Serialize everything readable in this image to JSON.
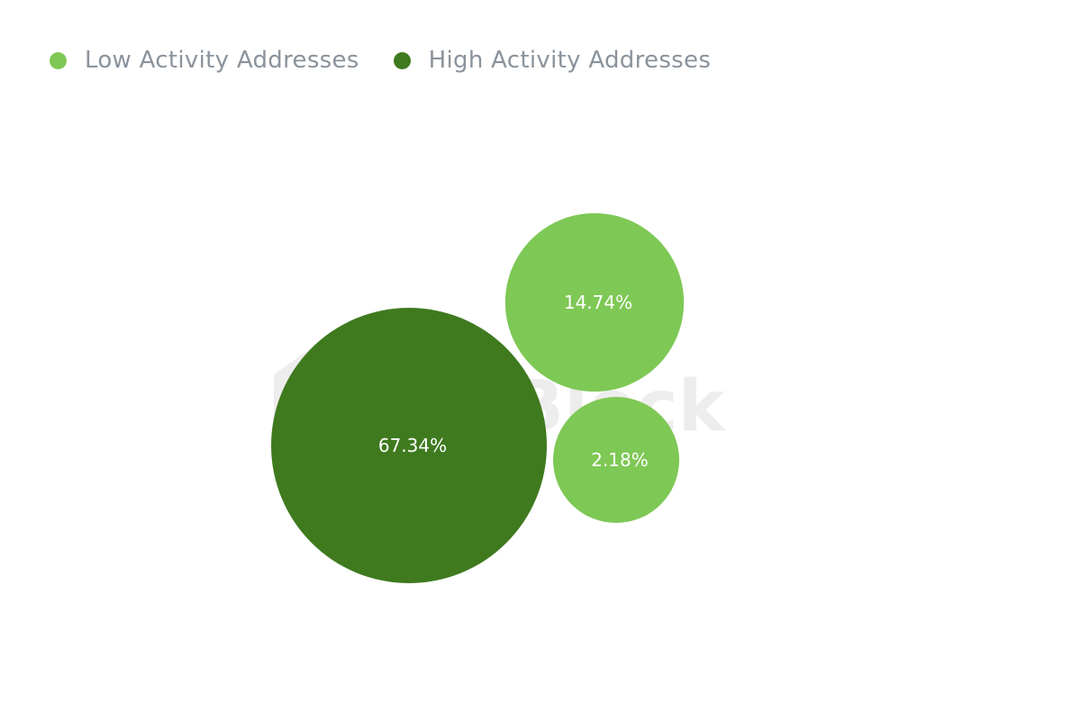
{
  "legend": {
    "items": [
      {
        "label": "Low Activity Addresses",
        "color": "#7ec855"
      },
      {
        "label": "High Activity Addresses",
        "color": "#3f7a1f"
      }
    ]
  },
  "watermark": {
    "text": "TheBlock"
  },
  "chart_data": {
    "type": "bubble",
    "title": "",
    "series": [
      {
        "name": "Low Activity Addresses",
        "color": "#7ec855",
        "values": [
          14.74,
          2.18
        ]
      },
      {
        "name": "High Activity Addresses",
        "color": "#3f7a1f",
        "values": [
          67.34
        ]
      }
    ],
    "data_labels": [
      "67.34%",
      "14.74%",
      "2.18%"
    ],
    "legend_position": "top-left",
    "grid": false
  }
}
